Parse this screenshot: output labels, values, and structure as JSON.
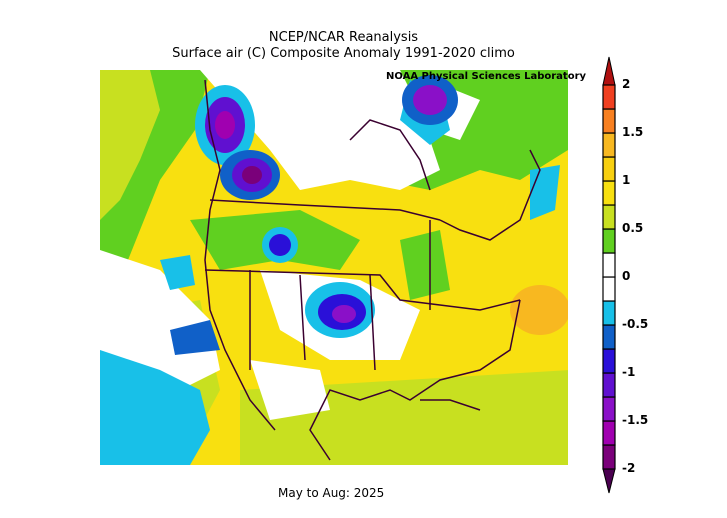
{
  "title": "NCEP/NCAR Reanalysis",
  "subtitle": "Surface air (C) Composite Anomaly 1991-2020 climo",
  "credit": "NOAA Physical Sciences Laboratory",
  "period": "May to Aug: 2025",
  "chart_data": {
    "type": "heatmap",
    "title": "NCEP/NCAR Reanalysis — Surface air (C) Composite Anomaly 1991-2020 climo",
    "variable": "Surface air temperature anomaly (C)",
    "region": "North America",
    "period": "May to Aug: 2025",
    "colorbar": {
      "range": [
        -2,
        2
      ],
      "step": 0.25,
      "tick_labels": [
        "2",
        "1.5",
        "1",
        "0.5",
        "0",
        "-0.5",
        "-1",
        "-1.5",
        "-2"
      ],
      "colors": [
        "#4a0050",
        "#7a007a",
        "#a000b0",
        "#8a10c8",
        "#6010d0",
        "#2a10d8",
        "#1060c8",
        "#18c0e8",
        "#ffffff",
        "#ffffff",
        "#60d020",
        "#c8e020",
        "#f8e010",
        "#f8d010",
        "#f8b820",
        "#f88020",
        "#f04020",
        "#b01010"
      ]
    }
  }
}
